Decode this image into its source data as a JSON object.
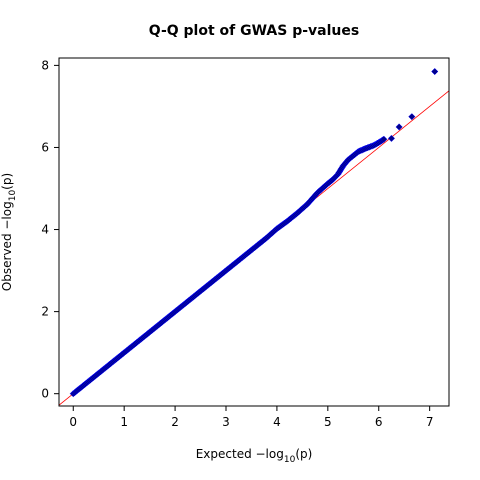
{
  "chart_data": {
    "type": "scatter",
    "title": "Q-Q plot of GWAS p-values",
    "xlabel_prefix": "Expected  −log",
    "ylabel_prefix": "Observed  −log",
    "label_subscript": "10",
    "label_suffix": "(p)",
    "xlim": [
      -0.28,
      7.38
    ],
    "ylim": [
      -0.3,
      8.18
    ],
    "xticks": [
      0,
      1,
      2,
      3,
      4,
      5,
      6,
      7
    ],
    "yticks": [
      0,
      2,
      4,
      6,
      8
    ],
    "grid": false,
    "reference_line": {
      "slope": 1,
      "intercept": 0,
      "color": "#ff0000"
    },
    "point_color": "#00008b",
    "points": [
      [
        0.0,
        0.0
      ],
      [
        0.2,
        0.2
      ],
      [
        0.4,
        0.4
      ],
      [
        0.6,
        0.6
      ],
      [
        0.8,
        0.8
      ],
      [
        1.0,
        1.0
      ],
      [
        1.2,
        1.2
      ],
      [
        1.4,
        1.4
      ],
      [
        1.6,
        1.6
      ],
      [
        1.8,
        1.8
      ],
      [
        2.0,
        2.0
      ],
      [
        2.2,
        2.2
      ],
      [
        2.4,
        2.4
      ],
      [
        2.6,
        2.6
      ],
      [
        2.8,
        2.8
      ],
      [
        3.0,
        3.0
      ],
      [
        3.2,
        3.2
      ],
      [
        3.4,
        3.4
      ],
      [
        3.6,
        3.6
      ],
      [
        3.8,
        3.8
      ],
      [
        4.0,
        4.02
      ],
      [
        4.2,
        4.2
      ],
      [
        4.4,
        4.4
      ],
      [
        4.6,
        4.62
      ],
      [
        4.8,
        4.9
      ],
      [
        5.0,
        5.12
      ],
      [
        5.1,
        5.22
      ],
      [
        5.2,
        5.35
      ],
      [
        5.3,
        5.55
      ],
      [
        5.4,
        5.7
      ],
      [
        5.5,
        5.8
      ],
      [
        5.6,
        5.9
      ],
      [
        5.75,
        5.98
      ],
      [
        5.9,
        6.05
      ],
      [
        6.0,
        6.12
      ],
      [
        6.1,
        6.2
      ],
      [
        6.25,
        6.22
      ],
      [
        6.4,
        6.5
      ],
      [
        6.65,
        6.75
      ],
      [
        7.1,
        7.85
      ]
    ]
  }
}
